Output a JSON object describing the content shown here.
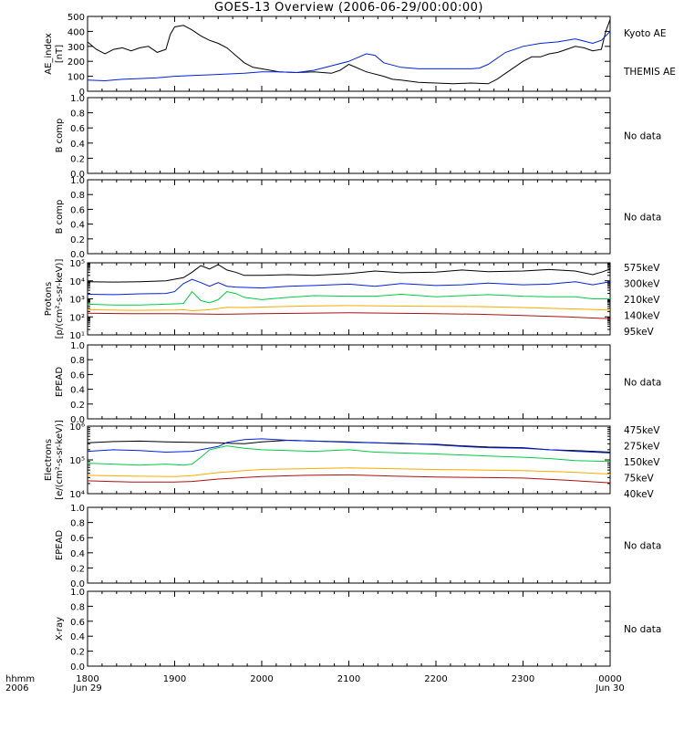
{
  "title": "GOES-13 Overview (2006-06-29/00:00:00)",
  "colors": {
    "black": "#000000",
    "blue": "#0022dd",
    "green": "#00cc44",
    "orange": "#ffaa00",
    "darkred": "#aa1111"
  },
  "x_axis": {
    "ticks": [
      "1800",
      "1900",
      "2000",
      "2100",
      "2200",
      "2300",
      "0000"
    ],
    "tick_sub": {
      "first": "Jun 29",
      "last": "Jun 30"
    },
    "corner_label_1": "hhmm",
    "corner_label_2": "2006",
    "range_hours": [
      18,
      24
    ]
  },
  "chart_data": [
    {
      "type": "line",
      "ylabel": "AE_index\n[nT]",
      "ylim": [
        0,
        500
      ],
      "ticks": [
        "0",
        "100",
        "200",
        "300",
        "400",
        "500"
      ],
      "series": [
        {
          "name": "Kyoto AE",
          "color": "#000000",
          "x": [
            18.0,
            18.1,
            18.2,
            18.3,
            18.4,
            18.5,
            18.6,
            18.7,
            18.8,
            18.9,
            18.95,
            19.0,
            19.1,
            19.2,
            19.3,
            19.4,
            19.5,
            19.6,
            19.7,
            19.8,
            19.9,
            20.0,
            20.2,
            20.4,
            20.6,
            20.8,
            20.9,
            21.0,
            21.2,
            21.4,
            21.5,
            21.6,
            21.8,
            22.0,
            22.2,
            22.4,
            22.6,
            22.7,
            22.8,
            23.0,
            23.1,
            23.2,
            23.3,
            23.4,
            23.5,
            23.6,
            23.7,
            23.8,
            23.9,
            23.95,
            24.0
          ],
          "y": [
            330,
            280,
            250,
            280,
            290,
            270,
            290,
            300,
            260,
            280,
            380,
            430,
            440,
            410,
            370,
            340,
            320,
            290,
            240,
            190,
            160,
            150,
            130,
            125,
            130,
            120,
            140,
            180,
            130,
            100,
            80,
            75,
            60,
            55,
            50,
            55,
            50,
            80,
            120,
            200,
            230,
            230,
            250,
            260,
            280,
            300,
            290,
            270,
            280,
            400,
            480
          ]
        },
        {
          "name": "THEMIS AE",
          "color": "#0022dd",
          "x": [
            18.0,
            18.2,
            18.4,
            18.6,
            18.8,
            19.0,
            19.2,
            19.4,
            19.6,
            19.8,
            20.0,
            20.2,
            20.4,
            20.6,
            20.8,
            21.0,
            21.2,
            21.3,
            21.4,
            21.6,
            21.8,
            22.0,
            22.2,
            22.4,
            22.5,
            22.6,
            22.8,
            23.0,
            23.2,
            23.4,
            23.6,
            23.8,
            23.9,
            24.0
          ],
          "y": [
            75,
            70,
            80,
            85,
            90,
            100,
            105,
            110,
            115,
            120,
            130,
            130,
            125,
            140,
            170,
            200,
            250,
            240,
            190,
            160,
            150,
            150,
            150,
            150,
            155,
            180,
            260,
            300,
            320,
            330,
            350,
            320,
            340,
            400
          ]
        }
      ]
    },
    {
      "type": "line",
      "ylabel": "B comp",
      "ylim": [
        0,
        1
      ],
      "ticks": [
        "0.0",
        "0.2",
        "0.4",
        "0.6",
        "0.8",
        "1.0"
      ],
      "note": "No data",
      "series": []
    },
    {
      "type": "line",
      "ylabel": "B comp",
      "ylim": [
        0,
        1
      ],
      "ticks": [
        "0.0",
        "0.2",
        "0.4",
        "0.6",
        "0.8",
        "1.0"
      ],
      "note": "No data",
      "series": []
    },
    {
      "type": "line",
      "ylabel": "Protons\n[p/(cm²-s-sr-keV)]",
      "scale": "log",
      "ylim": [
        10,
        100000
      ],
      "ticks": [
        "10¹",
        "10²",
        "10³",
        "10⁴",
        "10⁵"
      ],
      "series": [
        {
          "name": "95keV",
          "color": "#000000",
          "x": [
            18.0,
            18.3,
            18.6,
            18.9,
            19.1,
            19.2,
            19.3,
            19.4,
            19.5,
            19.6,
            19.7,
            19.8,
            20.0,
            20.3,
            20.6,
            21.0,
            21.3,
            21.6,
            22.0,
            22.3,
            22.6,
            23.0,
            23.3,
            23.6,
            23.8,
            23.9,
            24.0
          ],
          "y": [
            9000,
            8500,
            9000,
            10000,
            15000,
            30000,
            70000,
            45000,
            80000,
            40000,
            30000,
            20000,
            20000,
            22000,
            20000,
            25000,
            35000,
            28000,
            30000,
            40000,
            32000,
            35000,
            42000,
            35000,
            22000,
            30000,
            45000
          ]
        },
        {
          "name": "140keV",
          "color": "#0022dd",
          "x": [
            18.0,
            18.3,
            18.6,
            18.9,
            19.0,
            19.1,
            19.2,
            19.3,
            19.4,
            19.5,
            19.6,
            19.7,
            20.0,
            20.3,
            20.6,
            21.0,
            21.3,
            21.6,
            22.0,
            22.3,
            22.6,
            23.0,
            23.3,
            23.6,
            23.8,
            24.0
          ],
          "y": [
            1800,
            1700,
            1900,
            2000,
            2500,
            7000,
            12000,
            8000,
            5000,
            8000,
            5000,
            4500,
            4000,
            5000,
            5500,
            6500,
            5000,
            7000,
            5500,
            6000,
            7500,
            6000,
            6500,
            9000,
            6000,
            9000
          ]
        },
        {
          "name": "210keV",
          "color": "#00cc44",
          "x": [
            18.0,
            18.3,
            18.6,
            18.9,
            19.1,
            19.2,
            19.3,
            19.4,
            19.5,
            19.6,
            19.7,
            19.8,
            20.0,
            20.3,
            20.6,
            21.0,
            21.3,
            21.6,
            22.0,
            22.3,
            22.6,
            23.0,
            23.3,
            23.6,
            23.8,
            24.0
          ],
          "y": [
            500,
            450,
            450,
            500,
            550,
            2500,
            800,
            600,
            900,
            2500,
            2000,
            1200,
            900,
            1200,
            1500,
            1400,
            1400,
            1800,
            1300,
            1500,
            1700,
            1400,
            1300,
            1300,
            1000,
            1000
          ]
        },
        {
          "name": "300keV",
          "color": "#ffaa00",
          "x": [
            18.0,
            18.5,
            19.0,
            19.1,
            19.2,
            19.4,
            19.6,
            19.8,
            20.0,
            20.5,
            21.0,
            21.5,
            22.0,
            22.5,
            23.0,
            23.5,
            24.0
          ],
          "y": [
            250,
            230,
            240,
            250,
            220,
            250,
            340,
            330,
            350,
            400,
            420,
            400,
            380,
            370,
            330,
            280,
            240
          ]
        },
        {
          "name": "575keV",
          "color": "#aa1111",
          "x": [
            18.0,
            18.5,
            19.0,
            19.5,
            20.0,
            20.5,
            21.0,
            21.5,
            22.0,
            22.5,
            23.0,
            23.5,
            24.0
          ],
          "y": [
            160,
            150,
            150,
            140,
            150,
            160,
            170,
            160,
            150,
            140,
            120,
            100,
            80
          ]
        }
      ]
    },
    {
      "type": "line",
      "ylabel": "EPEAD",
      "ylim": [
        0,
        1
      ],
      "ticks": [
        "0.0",
        "0.2",
        "0.4",
        "0.6",
        "0.8",
        "1.0"
      ],
      "note": "No data",
      "series": []
    },
    {
      "type": "line",
      "ylabel": "Electrons\n[e/(cm²-s-sr-keV)]",
      "scale": "log",
      "ylim": [
        10000,
        1000000
      ],
      "ticks": [
        "10⁴",
        "10⁵",
        "10⁶"
      ],
      "series": [
        {
          "name": "40keV",
          "color": "#000000",
          "x": [
            18.0,
            18.3,
            18.6,
            18.9,
            19.2,
            19.5,
            19.8,
            20.0,
            20.3,
            20.6,
            21.0,
            21.3,
            21.6,
            22.0,
            22.3,
            22.6,
            23.0,
            23.3,
            23.6,
            23.8,
            24.0
          ],
          "y": [
            320000,
            350000,
            360000,
            340000,
            330000,
            320000,
            300000,
            340000,
            380000,
            360000,
            340000,
            320000,
            300000,
            290000,
            260000,
            240000,
            230000,
            200000,
            190000,
            180000,
            170000
          ]
        },
        {
          "name": "75keV",
          "color": "#0022dd",
          "x": [
            18.0,
            18.3,
            18.6,
            18.9,
            19.2,
            19.5,
            19.6,
            19.8,
            20.0,
            20.3,
            20.6,
            21.0,
            21.3,
            21.6,
            22.0,
            22.3,
            22.6,
            23.0,
            23.3,
            23.6,
            24.0
          ],
          "y": [
            180000,
            200000,
            190000,
            170000,
            180000,
            250000,
            330000,
            400000,
            420000,
            380000,
            360000,
            330000,
            320000,
            310000,
            280000,
            250000,
            230000,
            220000,
            200000,
            180000,
            160000
          ]
        },
        {
          "name": "150keV",
          "color": "#00cc44",
          "x": [
            18.0,
            18.3,
            18.6,
            18.9,
            19.1,
            19.2,
            19.3,
            19.4,
            19.6,
            19.8,
            20.0,
            20.3,
            20.6,
            21.0,
            21.3,
            21.6,
            22.0,
            22.3,
            22.6,
            23.0,
            23.3,
            23.6,
            24.0
          ],
          "y": [
            80000,
            75000,
            70000,
            75000,
            70000,
            75000,
            120000,
            200000,
            260000,
            220000,
            200000,
            190000,
            180000,
            200000,
            170000,
            160000,
            150000,
            140000,
            130000,
            120000,
            110000,
            95000,
            90000
          ]
        },
        {
          "name": "275keV",
          "color": "#ffaa00",
          "x": [
            18.0,
            18.5,
            19.0,
            19.2,
            19.5,
            19.8,
            20.0,
            20.5,
            21.0,
            21.5,
            22.0,
            22.5,
            23.0,
            23.5,
            24.0
          ],
          "y": [
            35000,
            33000,
            32000,
            34000,
            42000,
            48000,
            52000,
            55000,
            58000,
            55000,
            52000,
            50000,
            48000,
            44000,
            38000
          ]
        },
        {
          "name": "475keV",
          "color": "#aa1111",
          "x": [
            18.0,
            18.5,
            19.0,
            19.2,
            19.5,
            20.0,
            20.5,
            21.0,
            21.5,
            22.0,
            22.5,
            23.0,
            23.5,
            24.0
          ],
          "y": [
            24000,
            22000,
            22000,
            23000,
            27000,
            32000,
            35000,
            36000,
            33000,
            31000,
            30000,
            29000,
            25000,
            21000
          ]
        }
      ]
    },
    {
      "type": "line",
      "ylabel": "EPEAD",
      "ylim": [
        0,
        1
      ],
      "ticks": [
        "0.0",
        "0.2",
        "0.4",
        "0.6",
        "0.8",
        "1.0"
      ],
      "note": "No data",
      "series": []
    },
    {
      "type": "line",
      "ylabel": "X-ray",
      "ylim": [
        0,
        1
      ],
      "ticks": [
        "0.0",
        "0.2",
        "0.4",
        "0.6",
        "0.8",
        "1.0"
      ],
      "note": "No data",
      "series": []
    }
  ]
}
